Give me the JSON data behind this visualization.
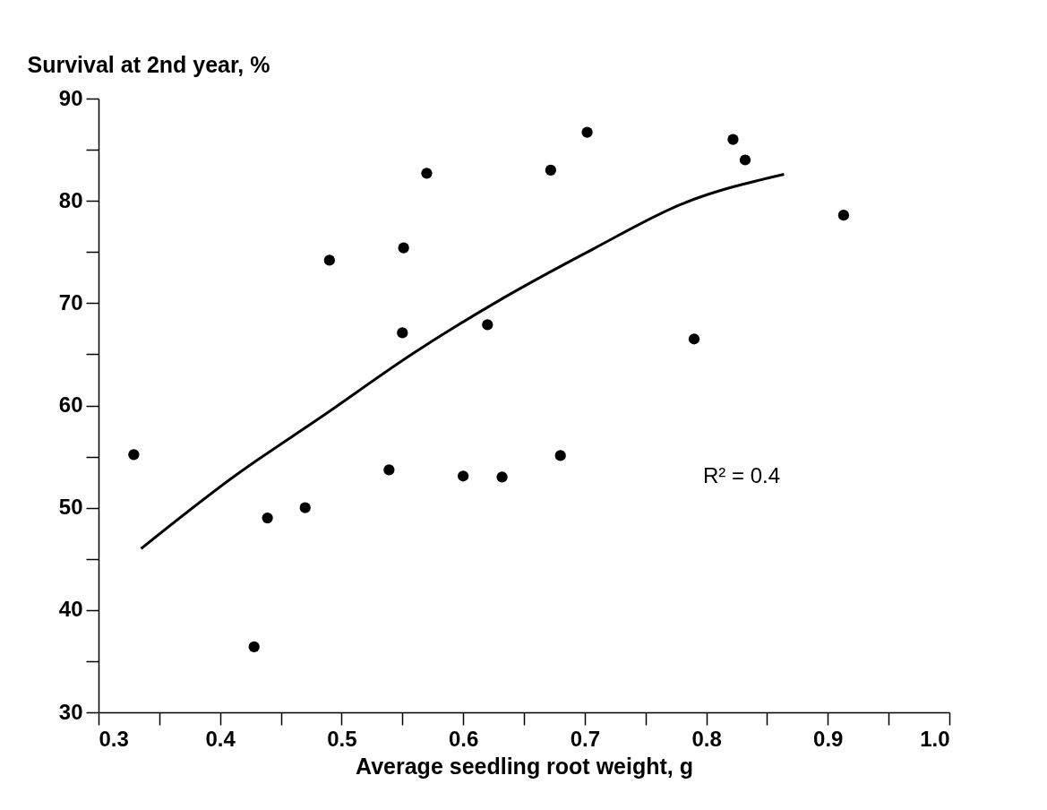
{
  "chart_data": {
    "type": "scatter",
    "xlabel": "Average seedling root weight, g",
    "ylabel": "Survival at 2nd year, %",
    "x": [
      0.329,
      0.428,
      0.439,
      0.47,
      0.49,
      0.539,
      0.55,
      0.551,
      0.57,
      0.6,
      0.62,
      0.632,
      0.672,
      0.68,
      0.702,
      0.79,
      0.822,
      0.832,
      0.913
    ],
    "series": [
      {
        "color": "#000000",
        "marker": "circle",
        "values": [
          55.2,
          36.4,
          49.0,
          50.0,
          74.2,
          53.7,
          67.1,
          75.4,
          82.7,
          53.1,
          67.9,
          53.0,
          83.0,
          55.1,
          86.7,
          66.5,
          86.0,
          84.0,
          78.6
        ]
      },
      {
        "type": "line",
        "color": "#000000",
        "x": [
          0.335,
          0.412,
          0.486,
          0.559,
          0.633,
          0.707,
          0.78,
          0.864
        ],
        "values": [
          46.0,
          53.1,
          59.1,
          65.1,
          70.5,
          75.3,
          79.7,
          82.6
        ]
      }
    ],
    "annotations": [
      "R² = 0.4"
    ],
    "xlim": [
      0.3,
      1.0
    ],
    "ylim": [
      30,
      90
    ],
    "xticks": [
      0.3,
      {
        "value": 0.35,
        "label": null
      },
      0.4,
      {
        "value": 0.45,
        "label": null
      },
      0.5,
      {
        "value": 0.55,
        "label": null
      },
      0.6,
      {
        "value": 0.65,
        "label": null
      },
      0.7,
      {
        "value": 0.75,
        "label": null
      },
      0.8,
      {
        "value": 0.85,
        "label": null
      },
      0.9,
      {
        "value": 0.95,
        "label": null
      },
      {
        "value": 1.0,
        "label": "1.0"
      }
    ],
    "yticks": [
      30,
      {
        "value": 35,
        "label": null
      },
      40,
      {
        "value": 45,
        "label": null
      },
      50,
      {
        "value": 55,
        "label": null
      },
      60,
      {
        "value": 65,
        "label": null
      },
      70,
      {
        "value": 75,
        "label": null
      },
      80,
      {
        "value": 85,
        "label": null
      },
      90
    ],
    "line_style": "solid"
  }
}
